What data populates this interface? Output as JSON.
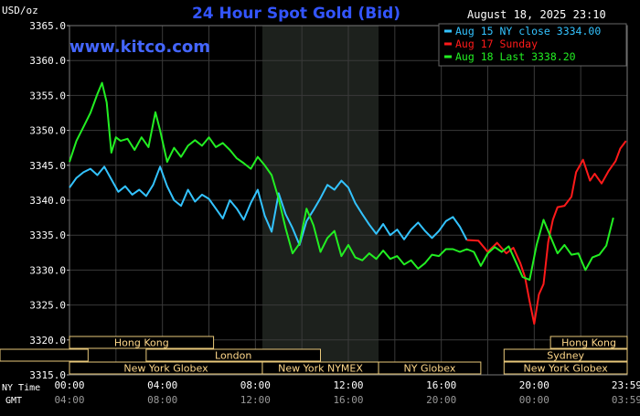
{
  "header": {
    "title": "24 Hour Spot Gold (Bid)",
    "unit": "USD/oz",
    "timestamp": "August 18, 2025 23:10",
    "watermark": "www.kitco.com"
  },
  "legend": [
    {
      "label": "Aug 15 NY close 3334.00",
      "color": "#33c3ff"
    },
    {
      "label": "Aug 17 Sunday",
      "color": "#ff1a1a"
    },
    {
      "label": "Aug 18 Last 3338.20",
      "color": "#22ee22"
    }
  ],
  "time_labels": {
    "row1_name": "NY Time",
    "row2_name": "GMT",
    "ny": [
      "00:00",
      "04:00",
      "08:00",
      "12:00",
      "16:00",
      "20:00",
      "23:59"
    ],
    "gmt": [
      "04:00",
      "08:00",
      "12:00",
      "16:00",
      "20:00",
      "00:00",
      "03:59"
    ]
  },
  "sessions": [
    {
      "label": "Hong Kong",
      "row": 0
    },
    {
      "label": "Hong Kong",
      "row": 0
    },
    {
      "label": "London",
      "row": 1
    },
    {
      "label": "Sydney",
      "row": 1
    },
    {
      "label": "New York Globex",
      "row": 2
    },
    {
      "label": "New York NYMEX",
      "row": 2
    },
    {
      "label": "NY Globex",
      "row": 2
    },
    {
      "label": "New York Globex",
      "row": 2
    }
  ],
  "chart_data": {
    "type": "line",
    "title": "24 Hour Spot Gold (Bid)",
    "ylabel": "USD/oz",
    "x_unit": "hours since 00:00 NY time",
    "xlim": [
      0,
      24
    ],
    "ylim": [
      3315,
      3365
    ],
    "yticks": [
      "3315.0",
      "3320.0",
      "3325.0",
      "3330.0",
      "3335.0",
      "3340.0",
      "3345.0",
      "3350.0",
      "3355.0",
      "3360.0",
      "3365.0"
    ],
    "grid": true,
    "legend_position": "top-right",
    "highlight_band": [
      8.3,
      13.3
    ],
    "series": [
      {
        "name": "Aug 15 NY close 3334.00",
        "color": "#33c3ff",
        "x": [
          0,
          0.3,
          0.6,
          0.9,
          1.2,
          1.5,
          1.8,
          2.1,
          2.4,
          2.7,
          3.0,
          3.3,
          3.6,
          3.9,
          4.2,
          4.5,
          4.8,
          5.1,
          5.4,
          5.7,
          6.0,
          6.3,
          6.6,
          6.9,
          7.2,
          7.5,
          7.8,
          8.1,
          8.4,
          8.7,
          9.0,
          9.3,
          9.6,
          9.9,
          10.2,
          10.5,
          10.8,
          11.1,
          11.4,
          11.7,
          12.0,
          12.3,
          12.6,
          12.9,
          13.2,
          13.5,
          13.8,
          14.1,
          14.4,
          14.7,
          15.0,
          15.3,
          15.6,
          15.9,
          16.2,
          16.5,
          16.8,
          17.1
        ],
        "values": [
          3341.8,
          3343.2,
          3344.0,
          3344.5,
          3343.6,
          3344.8,
          3343.0,
          3341.2,
          3342.0,
          3340.8,
          3341.5,
          3340.6,
          3342.2,
          3344.8,
          3342.0,
          3340.0,
          3339.2,
          3341.5,
          3339.8,
          3340.8,
          3340.2,
          3338.8,
          3337.4,
          3340.0,
          3338.8,
          3337.2,
          3339.6,
          3341.5,
          3337.8,
          3335.5,
          3341.0,
          3338.0,
          3336.0,
          3333.6,
          3337.0,
          3338.6,
          3340.3,
          3342.2,
          3341.5,
          3342.8,
          3341.8,
          3339.6,
          3338.0,
          3336.5,
          3335.2,
          3336.6,
          3335.0,
          3335.8,
          3334.4,
          3335.8,
          3336.8,
          3335.6,
          3334.6,
          3335.6,
          3337.0,
          3337.6,
          3336.2,
          3334.3
        ]
      },
      {
        "name": "Aug 17 Sunday",
        "color": "#ff1a1a",
        "x": [
          17.1,
          17.6,
          18.0,
          18.4,
          18.8,
          19.1,
          19.4,
          19.6,
          19.8,
          20.0,
          20.2,
          20.4,
          20.6,
          20.8,
          21.0,
          21.3,
          21.6,
          21.8,
          22.1,
          22.4,
          22.6,
          22.9,
          23.2,
          23.5,
          23.7,
          23.95
        ],
        "values": [
          3334.3,
          3334.2,
          3332.6,
          3333.9,
          3332.4,
          3333.2,
          3331.0,
          3329.0,
          3325.5,
          3322.3,
          3326.5,
          3328.0,
          3334.0,
          3337.2,
          3339.0,
          3339.2,
          3340.5,
          3344.0,
          3345.8,
          3342.8,
          3343.8,
          3342.4,
          3344.2,
          3345.6,
          3347.4,
          3348.5
        ]
      },
      {
        "name": "Aug 18 Last 3338.20",
        "color": "#22ee22",
        "x": [
          0,
          0.3,
          0.6,
          0.9,
          1.2,
          1.4,
          1.6,
          1.8,
          2.0,
          2.2,
          2.5,
          2.8,
          3.1,
          3.4,
          3.7,
          3.9,
          4.2,
          4.5,
          4.8,
          5.1,
          5.4,
          5.7,
          6.0,
          6.3,
          6.6,
          6.9,
          7.2,
          7.5,
          7.8,
          8.1,
          8.4,
          8.7,
          9.0,
          9.3,
          9.6,
          9.9,
          10.2,
          10.5,
          10.8,
          11.1,
          11.4,
          11.7,
          12.0,
          12.3,
          12.6,
          12.9,
          13.2,
          13.5,
          13.8,
          14.1,
          14.4,
          14.7,
          15.0,
          15.3,
          15.6,
          15.9,
          16.2,
          16.5,
          16.8,
          17.1,
          17.4,
          17.7,
          18.0,
          18.3,
          18.6,
          18.9,
          19.2,
          19.5,
          19.8,
          20.1,
          20.4,
          20.7,
          21.0,
          21.3,
          21.6,
          21.9,
          22.2,
          22.5,
          22.8,
          23.1,
          23.4
        ],
        "values": [
          3345.5,
          3348.5,
          3350.5,
          3352.5,
          3355.2,
          3356.8,
          3354.0,
          3346.8,
          3349.0,
          3348.5,
          3348.8,
          3347.2,
          3349.0,
          3347.6,
          3352.6,
          3350.0,
          3345.5,
          3347.5,
          3346.2,
          3347.8,
          3348.6,
          3347.8,
          3349.0,
          3347.6,
          3348.2,
          3347.2,
          3346.0,
          3345.3,
          3344.5,
          3346.2,
          3345.0,
          3343.6,
          3340.2,
          3336.0,
          3332.4,
          3333.8,
          3338.8,
          3336.4,
          3332.6,
          3334.6,
          3335.6,
          3332.0,
          3333.6,
          3331.8,
          3331.4,
          3332.4,
          3331.6,
          3332.8,
          3331.6,
          3332.0,
          3330.8,
          3331.4,
          3330.2,
          3331.0,
          3332.2,
          3332.0,
          3333.0,
          3333.0,
          3332.6,
          3333.0,
          3332.6,
          3330.6,
          3332.4,
          3333.3,
          3332.6,
          3333.4,
          3331.2,
          3329.0,
          3328.6,
          3333.6,
          3337.2,
          3334.8,
          3332.4,
          3333.6,
          3332.2,
          3332.4,
          3330.0,
          3331.8,
          3332.2,
          3333.5,
          3337.5
        ]
      }
    ]
  }
}
